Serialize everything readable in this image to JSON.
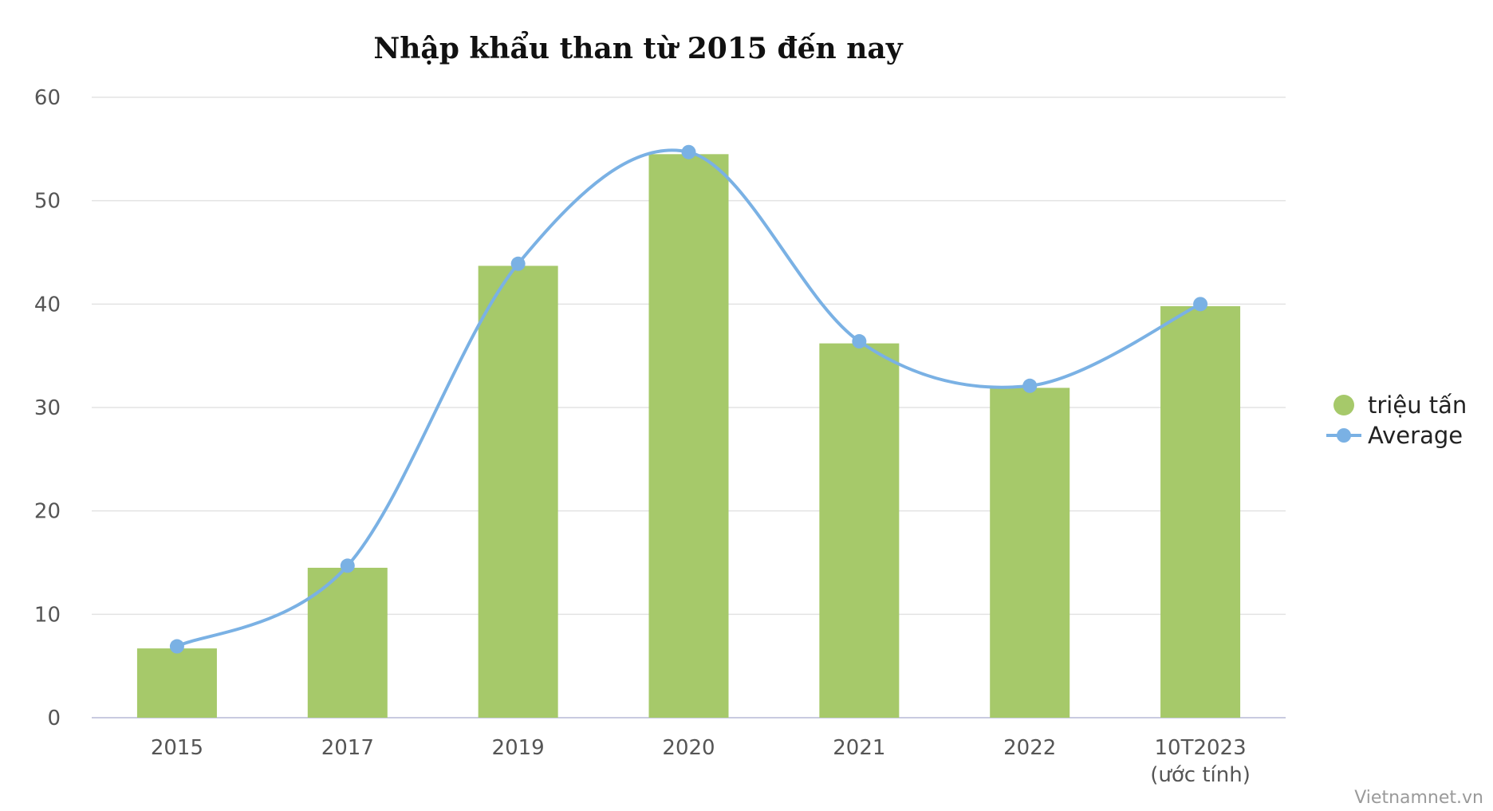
{
  "chart_data": {
    "type": "bar",
    "title": "Nhập khẩu than từ 2015 đến nay",
    "categories": [
      "2015",
      "2017",
      "2019",
      "2020",
      "2021",
      "2022",
      "10T2023\n(ước tính)"
    ],
    "series": [
      {
        "name": "triệu tấn",
        "type": "bar",
        "color": "#a6c96a",
        "values": [
          6.7,
          14.5,
          43.7,
          54.5,
          36.2,
          31.9,
          39.8
        ]
      },
      {
        "name": "Average",
        "type": "line",
        "smooth": true,
        "color": "#7ab1e4",
        "values": [
          6.9,
          14.7,
          43.9,
          54.7,
          36.4,
          32.1,
          40.0
        ]
      }
    ],
    "yticks": [
      0,
      10,
      20,
      30,
      40,
      50,
      60
    ],
    "ylim": [
      0,
      60
    ],
    "xlabel": "",
    "ylabel": "",
    "grid": true,
    "legend_position": "right"
  },
  "watermark": "Vietnamnet.vn"
}
